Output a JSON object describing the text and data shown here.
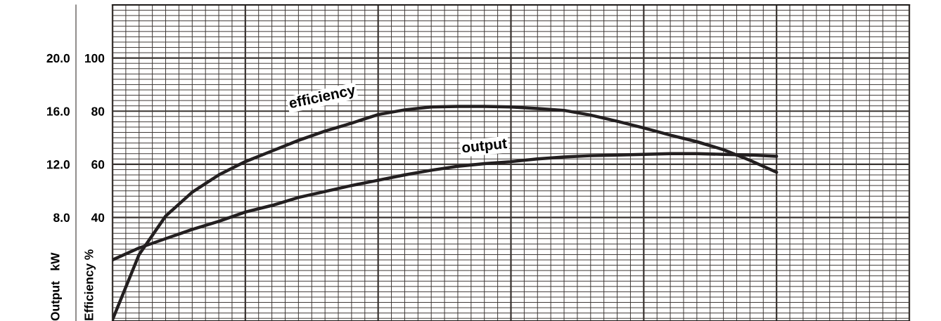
{
  "chart_data": {
    "type": "line",
    "ylabel": "Efficiency %",
    "y2label": "Output   kW",
    "categories": [
      null,
      null,
      null,
      null,
      null,
      null,
      null,
      null,
      null,
      null,
      null,
      null,
      null,
      null,
      null,
      null,
      null,
      null,
      null,
      null,
      null,
      null,
      null,
      null,
      null,
      null,
      null,
      null,
      null,
      null,
      null
    ],
    "ylim": [
      1,
      120
    ],
    "yticks": [
      40,
      60,
      80,
      100
    ],
    "y2lim": [
      0.2,
      24
    ],
    "y2ticks": [
      {
        "value": 8,
        "label": "8.0"
      },
      {
        "value": 12,
        "label": "12.0"
      },
      {
        "value": 16,
        "label": "16.0"
      },
      {
        "value": 20,
        "label": "20.0"
      }
    ],
    "grid": true,
    "tick_labels": "y",
    "series": [
      {
        "color": "#231f20",
        "values": [
          1.5,
          26,
          40.5,
          49.5,
          56,
          61,
          65,
          69,
          72.5,
          75.5,
          78.7,
          80.5,
          81.6,
          81.8,
          81.8,
          81.6,
          81,
          80.3,
          78.5,
          76.2,
          73.7,
          71,
          68.5,
          65.5,
          61.5,
          57,
          null,
          null,
          null,
          null,
          null
        ]
      },
      {
        "color": "#231f20",
        "axis": "y2",
        "values": [
          4.8,
          5.7,
          6.4,
          7.1,
          7.7,
          8.4,
          8.9,
          9.5,
          9.95,
          10.4,
          10.8,
          11.2,
          11.55,
          11.85,
          12.05,
          12.2,
          12.4,
          12.55,
          12.65,
          12.7,
          12.75,
          12.8,
          12.8,
          12.75,
          12.7,
          12.6,
          null,
          null,
          null,
          null,
          null
        ]
      }
    ],
    "annotations": [
      "efficiency",
      "output"
    ]
  }
}
